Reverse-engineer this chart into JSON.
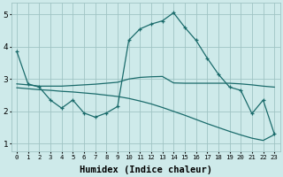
{
  "background_color": "#ceeaea",
  "grid_color": "#a0c4c4",
  "line_color": "#1a6b6b",
  "x_labels": [
    "0",
    "1",
    "2",
    "3",
    "4",
    "5",
    "6",
    "7",
    "8",
    "9",
    "10",
    "11",
    "12",
    "13",
    "14",
    "15",
    "16",
    "17",
    "18",
    "19",
    "20",
    "21",
    "22",
    "23"
  ],
  "xlabel": "Humidex (Indice chaleur)",
  "ylim": [
    0.75,
    5.35
  ],
  "yticks": [
    1,
    2,
    3,
    4,
    5
  ],
  "series1_x": [
    0,
    1,
    2,
    3,
    4,
    5,
    6,
    7,
    8,
    9,
    10,
    11,
    12,
    13,
    14,
    15,
    16,
    17,
    18,
    19,
    20,
    21,
    22,
    23
  ],
  "series1_y": [
    3.85,
    2.85,
    2.75,
    2.35,
    2.1,
    2.35,
    1.95,
    1.82,
    1.95,
    2.15,
    4.2,
    4.55,
    4.7,
    4.8,
    5.05,
    4.6,
    4.2,
    3.65,
    3.15,
    2.75,
    2.65,
    1.93,
    2.35,
    1.3
  ],
  "series2_x": [
    0,
    1,
    2,
    3,
    4,
    5,
    6,
    7,
    8,
    9,
    10,
    11,
    12,
    13,
    14,
    15,
    16,
    17,
    18,
    19,
    20,
    21,
    22,
    23
  ],
  "series2_y": [
    2.85,
    2.82,
    2.78,
    2.78,
    2.78,
    2.8,
    2.82,
    2.84,
    2.87,
    2.9,
    3.0,
    3.05,
    3.07,
    3.08,
    2.88,
    2.87,
    2.87,
    2.87,
    2.87,
    2.87,
    2.85,
    2.82,
    2.78,
    2.75
  ],
  "series3_x": [
    0,
    1,
    2,
    3,
    4,
    5,
    6,
    7,
    8,
    9,
    10,
    11,
    12,
    13,
    14,
    15,
    16,
    17,
    18,
    19,
    20,
    21,
    22,
    23
  ],
  "series3_y": [
    2.73,
    2.7,
    2.67,
    2.65,
    2.62,
    2.6,
    2.57,
    2.54,
    2.5,
    2.46,
    2.4,
    2.32,
    2.23,
    2.12,
    2.0,
    1.88,
    1.75,
    1.62,
    1.5,
    1.38,
    1.27,
    1.17,
    1.1,
    1.28
  ],
  "xtick_fontsize": 5.2,
  "ytick_fontsize": 6.5,
  "xlabel_fontsize": 7.5,
  "linewidth": 0.9,
  "markersize": 3.0
}
